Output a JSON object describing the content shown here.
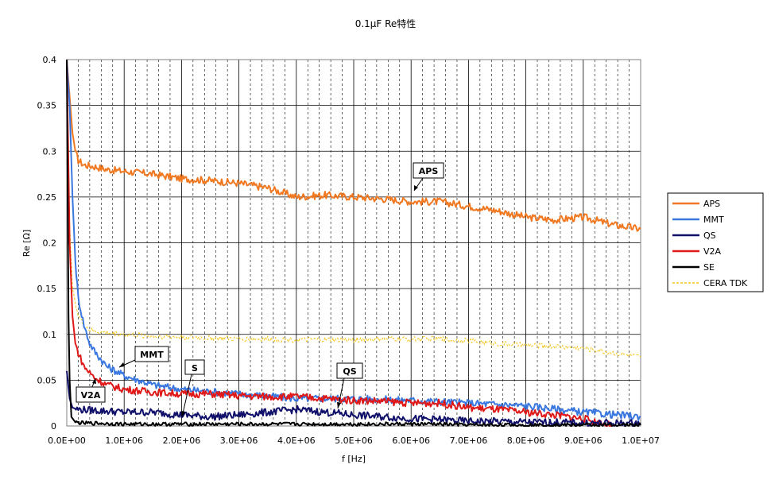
{
  "chart_data": {
    "type": "line",
    "title": "0.1μF  Re特性",
    "xlabel": "f [Hz]",
    "ylabel": "Re [Ω]",
    "xlim": [
      0,
      10000000
    ],
    "ylim": [
      0,
      0.4
    ],
    "x_ticks": [
      0,
      1000000,
      2000000,
      3000000,
      4000000,
      5000000,
      6000000,
      7000000,
      8000000,
      9000000,
      10000000
    ],
    "x_tick_labels": [
      "0.0E+00",
      "1.0E+06",
      "2.0E+06",
      "3.0E+06",
      "4.0E+06",
      "5.0E+06",
      "6.0E+06",
      "7.0E+06",
      "8.0E+06",
      "9.0E+06",
      "1.0E+07"
    ],
    "y_ticks": [
      0,
      0.05,
      0.1,
      0.15,
      0.2,
      0.25,
      0.3,
      0.35,
      0.4
    ],
    "y_tick_labels": [
      "0",
      "0.05",
      "0.1",
      "0.15",
      "0.2",
      "0.25",
      "0.3",
      "0.35",
      "0.4"
    ],
    "grid": true,
    "minor_grid_dashed": true,
    "legend_position": "right",
    "series": [
      {
        "name": "APS",
        "color": "#f07820",
        "width": 2,
        "dash": "none",
        "x": [
          0,
          50000,
          100000,
          150000,
          200000,
          300000,
          500000,
          700000,
          1000000,
          1500000,
          2000000,
          2500000,
          3000000,
          3500000,
          4000000,
          4500000,
          5000000,
          5500000,
          6000000,
          6500000,
          7000000,
          7500000,
          8000000,
          8500000,
          9000000,
          9500000,
          10000000
        ],
        "y": [
          0.4,
          0.36,
          0.32,
          0.3,
          0.29,
          0.285,
          0.283,
          0.28,
          0.278,
          0.275,
          0.27,
          0.268,
          0.265,
          0.26,
          0.25,
          0.252,
          0.25,
          0.248,
          0.245,
          0.245,
          0.24,
          0.235,
          0.228,
          0.225,
          0.228,
          0.22,
          0.215
        ]
      },
      {
        "name": "MMT",
        "color": "#3a78e0",
        "width": 2,
        "dash": "none",
        "x": [
          0,
          50000,
          100000,
          150000,
          200000,
          300000,
          400000,
          500000,
          700000,
          1000000,
          1500000,
          2000000,
          3000000,
          4000000,
          5000000,
          6000000,
          7000000,
          8000000,
          9000000,
          10000000
        ],
        "y": [
          0.4,
          0.35,
          0.25,
          0.18,
          0.14,
          0.11,
          0.09,
          0.08,
          0.065,
          0.055,
          0.045,
          0.04,
          0.035,
          0.03,
          0.03,
          0.028,
          0.025,
          0.022,
          0.015,
          0.01
        ]
      },
      {
        "name": "QS",
        "color": "#10106a",
        "width": 2,
        "dash": "none",
        "x": [
          0,
          50000,
          100000,
          200000,
          500000,
          1000000,
          1500000,
          2000000,
          2500000,
          3000000,
          3500000,
          4000000,
          4500000,
          5000000,
          5500000,
          6000000,
          6500000,
          7000000,
          7500000,
          8000000,
          8500000,
          9000000,
          10000000
        ],
        "y": [
          0.06,
          0.03,
          0.02,
          0.018,
          0.017,
          0.015,
          0.015,
          0.012,
          0.01,
          0.012,
          0.015,
          0.018,
          0.015,
          0.012,
          0.01,
          0.008,
          0.007,
          0.005,
          0.005,
          0.004,
          0.004,
          0.003,
          0.003
        ]
      },
      {
        "name": "V2A",
        "color": "#e01818",
        "width": 2,
        "dash": "none",
        "x": [
          0,
          50000,
          100000,
          150000,
          200000,
          300000,
          400000,
          500000,
          700000,
          1000000,
          1500000,
          2000000,
          2500000,
          3000000,
          3500000,
          4000000,
          4500000,
          5000000,
          5500000,
          6000000,
          6500000,
          7000000,
          7500000,
          8000000,
          8500000,
          9000000,
          9500000
        ],
        "y": [
          0.4,
          0.2,
          0.12,
          0.09,
          0.08,
          0.065,
          0.058,
          0.052,
          0.045,
          0.04,
          0.037,
          0.035,
          0.035,
          0.033,
          0.032,
          0.032,
          0.03,
          0.028,
          0.027,
          0.025,
          0.025,
          0.02,
          0.018,
          0.015,
          0.012,
          0.008,
          0.0
        ]
      },
      {
        "name": "SE",
        "color": "#000000",
        "width": 2,
        "dash": "none",
        "x": [
          0,
          30000,
          50000,
          80000,
          150000,
          300000,
          500000,
          1000000,
          2000000,
          3000000,
          4000000,
          5000000,
          6000000,
          6400000,
          7000000,
          8000000,
          9000000,
          10000000
        ],
        "y": [
          0.4,
          0.12,
          0.05,
          0.01,
          0.004,
          0.003,
          0.003,
          0.002,
          0.002,
          0.002,
          0.002,
          0.002,
          0.002,
          0.002,
          0.001,
          0.001,
          0.001,
          0.001
        ]
      },
      {
        "name": "CERA TDK",
        "color": "#f5c518",
        "width": 1,
        "dash": "3,2",
        "x": [
          0,
          50000,
          100000,
          200000,
          300000,
          400000,
          500000,
          1000000,
          1500000,
          2000000,
          2500000,
          3000000,
          3500000,
          4000000,
          4500000,
          5000000,
          5500000,
          6000000,
          6500000,
          7000000,
          7500000,
          8000000,
          8500000,
          9000000,
          9500000,
          10000000
        ],
        "y": [
          0.4,
          0.22,
          0.15,
          0.12,
          0.11,
          0.105,
          0.103,
          0.1,
          0.098,
          0.097,
          0.096,
          0.095,
          0.095,
          0.094,
          0.094,
          0.094,
          0.095,
          0.095,
          0.095,
          0.093,
          0.09,
          0.088,
          0.087,
          0.085,
          0.08,
          0.075
        ]
      }
    ],
    "annotations": [
      {
        "text": "APS"
      },
      {
        "text": "MMT"
      },
      {
        "text": "S"
      },
      {
        "text": "QS"
      },
      {
        "text": "V2A"
      }
    ]
  }
}
